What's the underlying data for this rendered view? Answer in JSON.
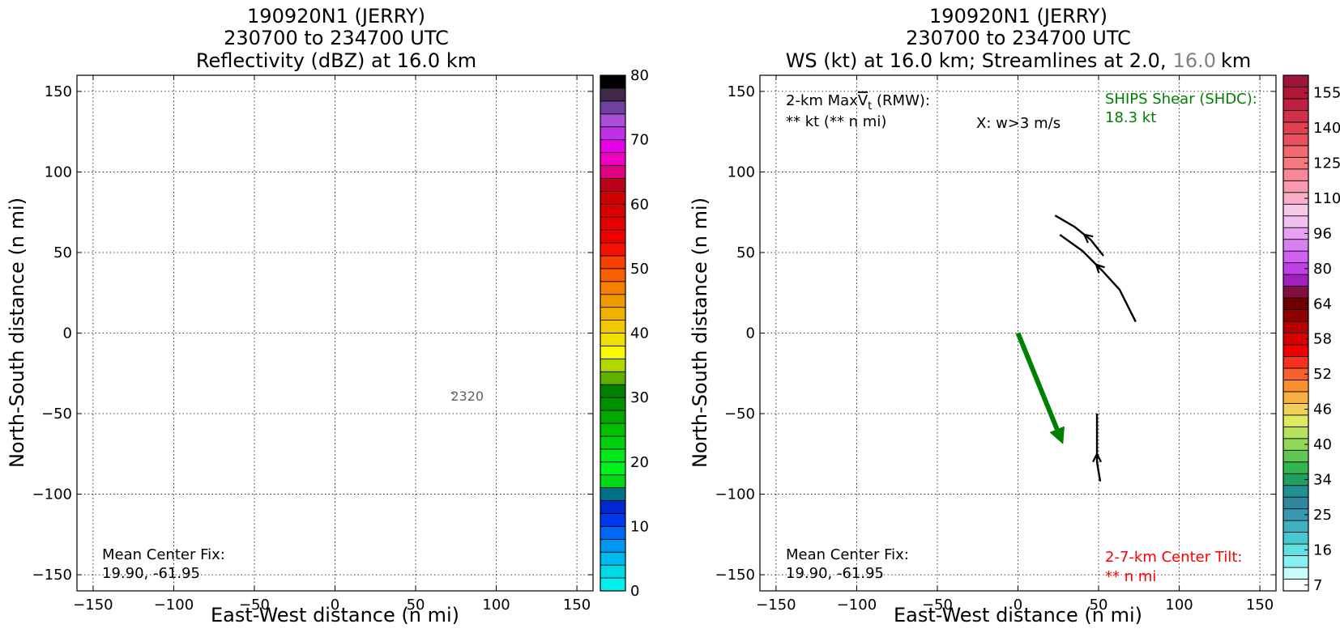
{
  "left_panel": {
    "title": [
      "190920N1 (JERRY)",
      "230700 to 234700 UTC",
      "Reflectivity (dBZ) at 16.0 km"
    ],
    "xlabel": "East-West distance (n mi)",
    "ylabel": "North-South distance (n mi)",
    "center_fix_label": "Mean Center Fix:",
    "center_fix_value": "19.90, -61.95",
    "time_annotation": "2320"
  },
  "right_panel": {
    "title": [
      "190920N1 (JERRY)",
      "230700 to 234700 UTC"
    ],
    "title_line3_a": "WS (kt) at 16.0 km; Streamlines at 2.0,",
    "title_line3_b": "16.0",
    "title_line3_c": "km",
    "maxvt_label_a": "2-km Max",
    "maxvt_label_v": "V",
    "maxvt_label_t": "t",
    "maxvt_label_b": " (RMW):",
    "maxvt_value": "** kt (** n mi)",
    "w_note": "X: w>3 m/s",
    "ships_label": "SHIPS Shear (SHDC):",
    "ships_value": "18.3 kt",
    "center_fix_label": "Mean Center Fix:",
    "center_fix_value": "19.90, -61.95",
    "tilt_label": "2-7-km Center Tilt:",
    "tilt_value": "** n mi",
    "xlabel": "East-West distance (n mi)",
    "ylabel": "North-South distance (n mi)"
  },
  "colors": {
    "shear_arrow": "#008000",
    "ships_text": "#008000",
    "tilt_text": "#ff0000",
    "grey_text": "#808080"
  },
  "chart_data": [
    {
      "type": "heatmap",
      "title": "190920N1 (JERRY) 230700 to 234700 UTC Reflectivity (dBZ) at 16.0 km",
      "xlabel": "East-West distance (n mi)",
      "ylabel": "North-South distance (n mi)",
      "xlim": [
        -160,
        160
      ],
      "ylim": [
        -160,
        160
      ],
      "xticks": [
        -150,
        -100,
        -50,
        0,
        50,
        100,
        150
      ],
      "yticks": [
        -150,
        -100,
        -50,
        0,
        50,
        100,
        150
      ],
      "grid": true,
      "colorbar": {
        "ticks": [
          0,
          10,
          20,
          30,
          40,
          50,
          60,
          70,
          80
        ],
        "colors": [
          "#00f0f0",
          "#00d8e8",
          "#00b8f0",
          "#0098f0",
          "#0068f8",
          "#0038f0",
          "#0028d0",
          "#007088",
          "#00d818",
          "#00f020",
          "#00e818",
          "#00d010",
          "#00c000",
          "#00a800",
          "#009000",
          "#008000",
          "#60b000",
          "#b0d800",
          "#f8f800",
          "#f0e000",
          "#f0c800",
          "#f0b000",
          "#f09800",
          "#f88000",
          "#f86000",
          "#f84000",
          "#f81000",
          "#f00000",
          "#e80000",
          "#d80000",
          "#d00000",
          "#c00018",
          "#e00080",
          "#f000c0",
          "#e800e8",
          "#c030e8",
          "#a850d8",
          "#7040a0",
          "#402848",
          "#000000"
        ]
      },
      "annotations": [
        {
          "x": 82,
          "y": -39,
          "text": "2320"
        }
      ],
      "values": []
    },
    {
      "type": "heatmap",
      "title": "190920N1 (JERRY) 230700 to 234700 UTC WS (kt) at 16.0 km; Streamlines at 2.0, 16.0 km",
      "xlabel": "East-West distance (n mi)",
      "ylabel": "North-South distance (n mi)",
      "xlim": [
        -160,
        160
      ],
      "ylim": [
        -160,
        160
      ],
      "xticks": [
        -150,
        -100,
        -50,
        0,
        50,
        100,
        150
      ],
      "yticks": [
        -150,
        -100,
        -50,
        0,
        50,
        100,
        150
      ],
      "grid": true,
      "colorbar": {
        "ticks": [
          7,
          16,
          25,
          34,
          40,
          46,
          52,
          58,
          64,
          80,
          96,
          110,
          125,
          140,
          155
        ],
        "colors": [
          "#ffffff",
          "#c8fcfc",
          "#88f0f0",
          "#60e0e0",
          "#48c8d0",
          "#40b0c0",
          "#3898b0",
          "#3088a0",
          "#209090",
          "#20a060",
          "#30b850",
          "#60c850",
          "#90d858",
          "#b8e060",
          "#e0e860",
          "#f0d058",
          "#f8b040",
          "#f89030",
          "#f86030",
          "#f83020",
          "#f00000",
          "#d80000",
          "#b80000",
          "#900000",
          "#700000",
          "#801040",
          "#a020c0",
          "#c040e8",
          "#d060f0",
          "#d880f0",
          "#e8a0f0",
          "#f0c0f0",
          "#f8c8e8",
          "#f8b0c8",
          "#f89ab0",
          "#f88898",
          "#f87880",
          "#f06870",
          "#e85060",
          "#e04050",
          "#d03048",
          "#c02040",
          "#b01838",
          "#a01438"
        ]
      },
      "shear_vector": {
        "from": [
          0,
          0
        ],
        "to": [
          28,
          -69
        ],
        "magnitude_kt": 18.3
      },
      "streamlines": [
        {
          "level_km": 2.0,
          "points": [
            [
              23,
              73
            ],
            [
              35,
              66
            ],
            [
              45,
              58
            ],
            [
              53,
              48
            ]
          ]
        },
        {
          "level_km": 2.0,
          "points": [
            [
              26,
              61
            ],
            [
              40,
              51
            ],
            [
              52,
              39
            ],
            [
              63,
              27
            ],
            [
              73,
              7
            ]
          ]
        },
        {
          "level_km": 2.0,
          "points": [
            [
              49,
              -50
            ],
            [
              49,
              -66
            ],
            [
              49,
              -80
            ],
            [
              51,
              -92
            ]
          ]
        }
      ],
      "values": []
    }
  ]
}
